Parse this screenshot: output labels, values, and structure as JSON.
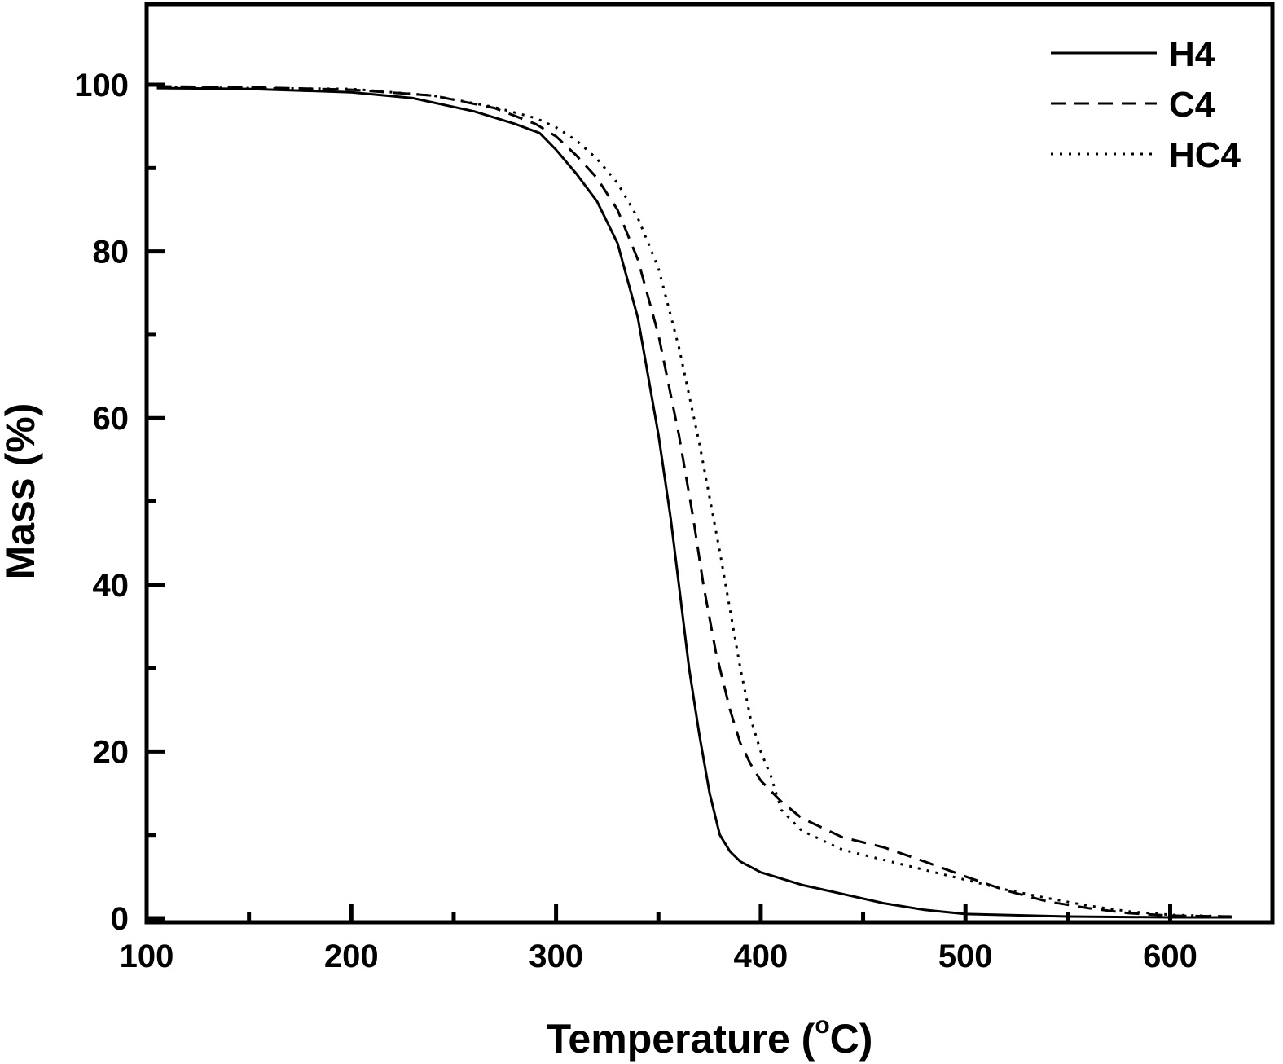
{
  "chart_data": {
    "type": "line",
    "xlabel_main": "Temperature (",
    "xlabel_degree": "o",
    "xlabel_unit": "C)",
    "ylabel": "Mass (%)",
    "xlim": [
      100,
      650
    ],
    "ylim": [
      0,
      110
    ],
    "x_ticks": [
      100,
      200,
      300,
      400,
      500,
      600
    ],
    "y_ticks": [
      0,
      20,
      40,
      60,
      80,
      100
    ],
    "x_minor_ticks": [
      150,
      250,
      350,
      450,
      550
    ],
    "y_minor_ticks": [
      10,
      30,
      50,
      70,
      90
    ],
    "grid": false,
    "legend_position": "top-right",
    "line_color": "#000000",
    "series": [
      {
        "name": "H4",
        "style": "solid",
        "points": [
          [
            105,
            99.6
          ],
          [
            150,
            99.5
          ],
          [
            200,
            99.1
          ],
          [
            230,
            98.4
          ],
          [
            260,
            96.8
          ],
          [
            280,
            95.3
          ],
          [
            292,
            94.2
          ],
          [
            300,
            92.2
          ],
          [
            310,
            89.3
          ],
          [
            320,
            86
          ],
          [
            330,
            81
          ],
          [
            340,
            72
          ],
          [
            350,
            58
          ],
          [
            356,
            48
          ],
          [
            360,
            40
          ],
          [
            365,
            30
          ],
          [
            370,
            22
          ],
          [
            375,
            15
          ],
          [
            380,
            10
          ],
          [
            385,
            8
          ],
          [
            390,
            6.8
          ],
          [
            400,
            5.5
          ],
          [
            420,
            4
          ],
          [
            440,
            2.9
          ],
          [
            460,
            1.8
          ],
          [
            480,
            1
          ],
          [
            500,
            0.5
          ],
          [
            550,
            0.2
          ],
          [
            600,
            0.1
          ],
          [
            630,
            0.1
          ]
        ]
      },
      {
        "name": "C4",
        "style": "dashed",
        "points": [
          [
            105,
            99.8
          ],
          [
            150,
            99.7
          ],
          [
            200,
            99.4
          ],
          [
            240,
            98.7
          ],
          [
            270,
            97.2
          ],
          [
            290,
            95.3
          ],
          [
            300,
            93.8
          ],
          [
            310,
            91.5
          ],
          [
            320,
            88.8
          ],
          [
            330,
            85
          ],
          [
            340,
            79
          ],
          [
            350,
            70
          ],
          [
            360,
            58
          ],
          [
            367,
            48
          ],
          [
            372,
            40
          ],
          [
            378,
            32
          ],
          [
            385,
            25
          ],
          [
            390,
            21
          ],
          [
            395,
            18.5
          ],
          [
            400,
            16.5
          ],
          [
            410,
            14
          ],
          [
            420,
            12
          ],
          [
            440,
            9.7
          ],
          [
            460,
            8.5
          ],
          [
            480,
            6.8
          ],
          [
            500,
            5
          ],
          [
            520,
            3.3
          ],
          [
            540,
            2
          ],
          [
            560,
            1.2
          ],
          [
            580,
            0.6
          ],
          [
            600,
            0.3
          ],
          [
            630,
            0.2
          ]
        ]
      },
      {
        "name": "HC4",
        "style": "dotted",
        "points": [
          [
            105,
            99.7
          ],
          [
            150,
            99.6
          ],
          [
            200,
            99.5
          ],
          [
            240,
            98.7
          ],
          [
            270,
            97.3
          ],
          [
            290,
            96
          ],
          [
            300,
            94.9
          ],
          [
            310,
            93.3
          ],
          [
            320,
            91.1
          ],
          [
            330,
            88.2
          ],
          [
            340,
            84
          ],
          [
            350,
            78
          ],
          [
            360,
            68.5
          ],
          [
            370,
            57
          ],
          [
            380,
            44
          ],
          [
            385,
            37
          ],
          [
            390,
            30
          ],
          [
            395,
            24
          ],
          [
            400,
            20
          ],
          [
            405,
            17
          ],
          [
            410,
            13
          ],
          [
            420,
            10.5
          ],
          [
            440,
            8.2
          ],
          [
            460,
            7
          ],
          [
            480,
            5.8
          ],
          [
            500,
            4.6
          ],
          [
            520,
            3.4
          ],
          [
            540,
            2.4
          ],
          [
            560,
            1.5
          ],
          [
            580,
            0.8
          ],
          [
            600,
            0.4
          ],
          [
            630,
            0.2
          ]
        ]
      }
    ]
  }
}
